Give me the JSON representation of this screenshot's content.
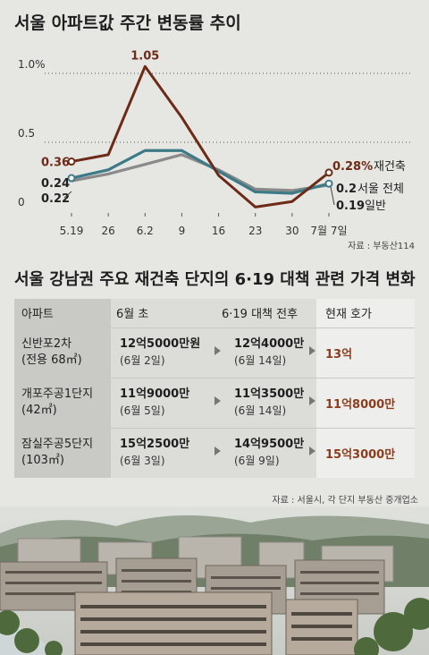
{
  "chart_data": {
    "type": "line",
    "title": "서울 아파트값 주간 변동률 추이",
    "categories": [
      "5.19",
      "26",
      "6.2",
      "9",
      "16",
      "23",
      "30",
      "7월 7일"
    ],
    "y_ticks": [
      "1.0%",
      "0.5",
      "0"
    ],
    "ylim": [
      0,
      1.0
    ],
    "grid": "dotted horizontal",
    "series": [
      {
        "name": "재건축",
        "color": "#6d2a16",
        "values": [
          0.36,
          0.41,
          1.05,
          0.68,
          0.26,
          0.03,
          0.07,
          0.28
        ]
      },
      {
        "name": "서울 전체",
        "color": "#3d7a87",
        "values": [
          0.24,
          0.3,
          0.44,
          0.44,
          0.29,
          0.14,
          0.13,
          0.2
        ]
      },
      {
        "name": "일반",
        "color": "#8a8a8a",
        "values": [
          0.22,
          0.27,
          0.34,
          0.41,
          0.3,
          0.16,
          0.15,
          0.19
        ]
      }
    ],
    "start_labels": [
      "0.36",
      "0.24",
      "0.22"
    ],
    "peak_label": "1.05",
    "end_labels": [
      {
        "value": "0.28%",
        "name": "재건축"
      },
      {
        "value": "0.2",
        "name": "서울 전체"
      },
      {
        "value": "0.19",
        "name": "일반"
      }
    ],
    "source": "자료 : 부동산114"
  },
  "table": {
    "title": "서울 강남권 주요 재건축 단지의 6·19 대책 관련 가격 변화",
    "headers": [
      "아파트",
      "6월 초",
      "6·19 대책 전후",
      "현재 호가"
    ],
    "rows": [
      {
        "name": "신반포2차",
        "sub": "(전용 68㎡)",
        "early_price": "12억5000만원",
        "early_date": "(6월 2일)",
        "after_price": "12억4000만",
        "after_date": "(6월 14일)",
        "current": "13억"
      },
      {
        "name": "개포주공1단지",
        "sub": "(42㎡)",
        "early_price": "11억9000만",
        "early_date": "(6월 5일)",
        "after_price": "11억3500만",
        "after_date": "(6월 14일)",
        "current": "11억8000만"
      },
      {
        "name": "잠실주공5단지",
        "sub": "(103㎡)",
        "early_price": "15억2500만",
        "early_date": "(6월 3일)",
        "after_price": "14억9500만",
        "after_date": "(6월 9일)",
        "current": "15억3000만"
      }
    ],
    "source": "자료 : 서울시, 각 단지 부동산 중개업소"
  },
  "colors": {
    "accent": "#8b3d1d",
    "teal": "#3d7a87",
    "gray": "#8a8a8a"
  },
  "photo": {
    "description_icon": "apartment-complex-photo"
  }
}
